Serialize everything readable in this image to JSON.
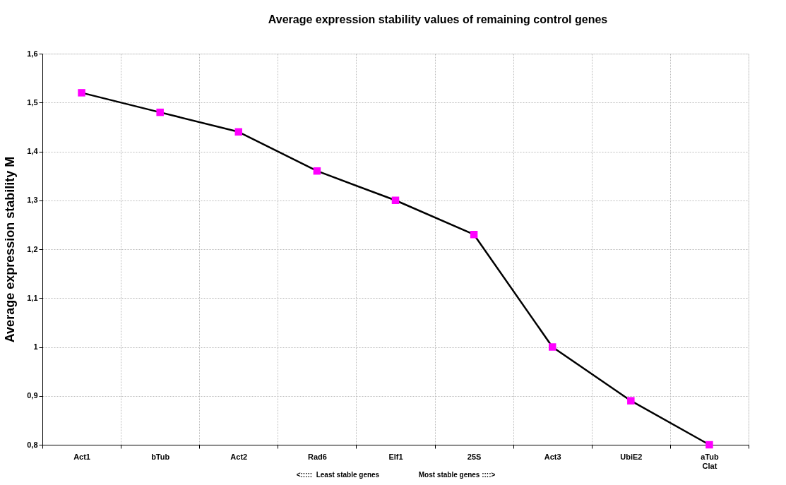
{
  "chart_data": {
    "type": "line",
    "title": "Average expression stability values of remaining control genes",
    "xlabel": "<:::::  Least stable genes                    Most stable genes ::::>",
    "ylabel": "Average expression stability M",
    "categories": [
      "Act1",
      "bTub",
      "Act2",
      "Rad6",
      "Elf1",
      "25S",
      "Act3",
      "UbiE2",
      "aTub\nClat"
    ],
    "series": [
      {
        "color": "#000000",
        "colors": [
          "#ff00ff",
          "#ff00ff",
          "#ff00ff",
          "#ff00ff",
          "#ff00ff",
          "#ff00ff",
          "#ff00ff",
          "#ff00ff",
          "#ff00ff"
        ],
        "values": [
          1.52,
          1.48,
          1.44,
          1.36,
          1.3,
          1.23,
          1.0,
          0.89,
          0.8
        ]
      }
    ],
    "ylim": [
      0.8,
      1.6
    ],
    "yticks": [
      {
        "value": 0.8,
        "label": "0,8"
      },
      {
        "value": 0.9,
        "label": "0,9"
      },
      1,
      {
        "value": 1.1,
        "label": "1,1"
      },
      {
        "value": 1.2,
        "label": "1,2"
      },
      {
        "value": 1.3,
        "label": "1,3"
      },
      {
        "value": 1.4,
        "label": "1,4"
      },
      {
        "value": 1.5,
        "label": "1,5"
      },
      {
        "value": 1.6,
        "label": "1,6"
      }
    ],
    "grid": true,
    "marker": "square",
    "line_style": "solid"
  }
}
